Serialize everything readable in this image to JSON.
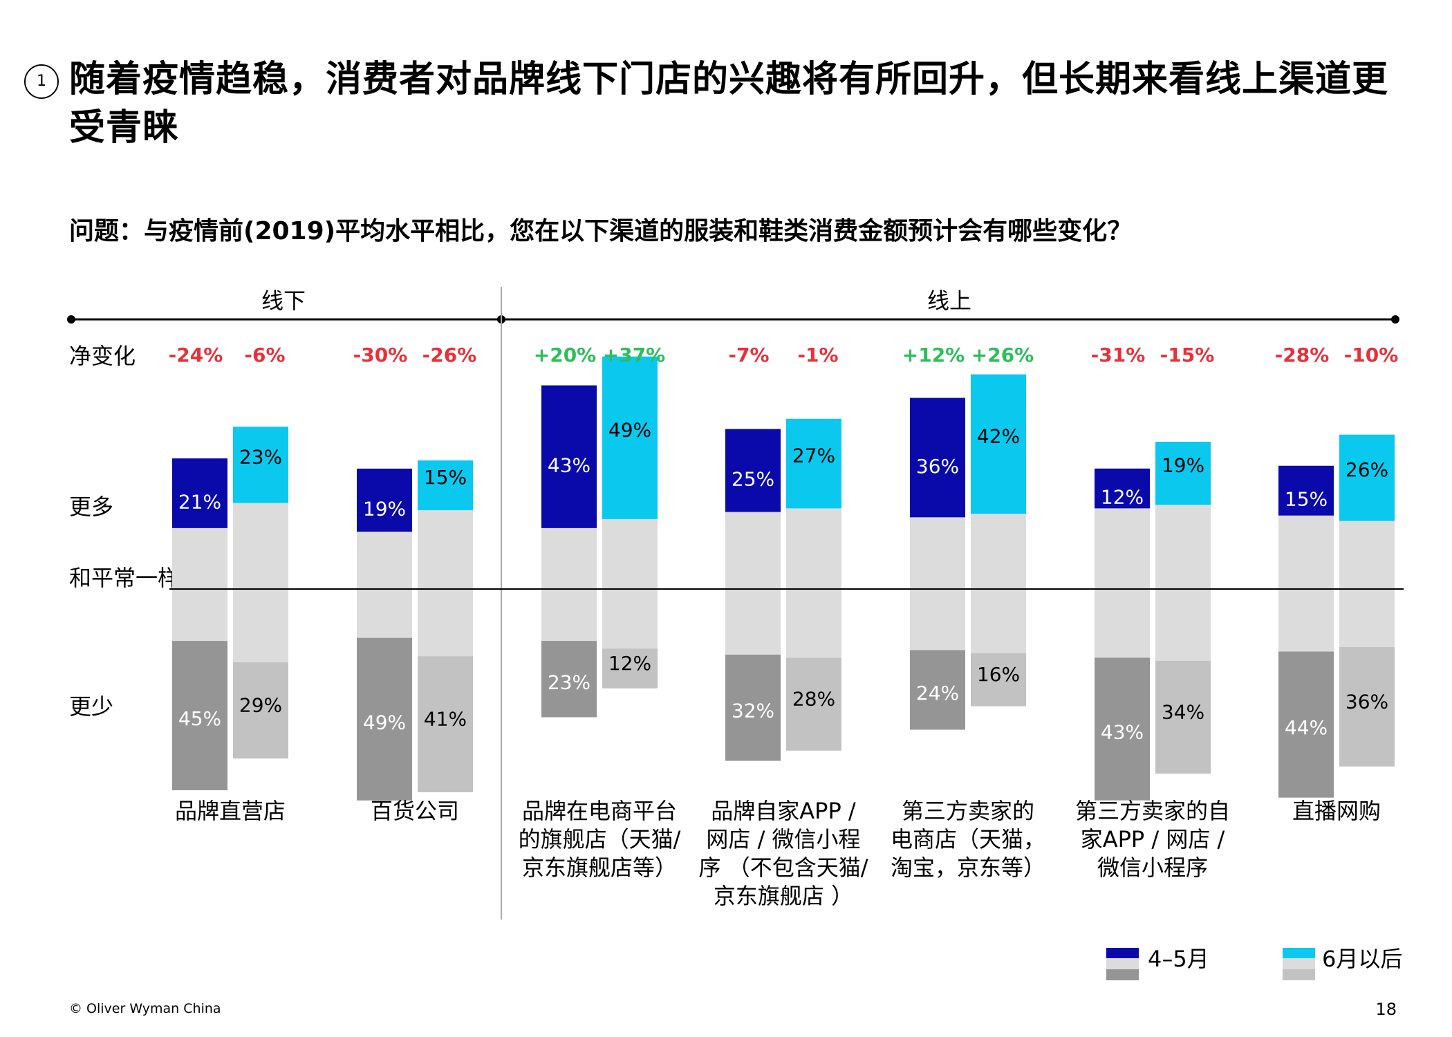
{
  "header": {
    "number": "1",
    "title": "随着疫情趋稳，消费者对品牌线下门店的兴趣将有所回升，但长期来看线上渠道更受青睐",
    "question": "问题：与疫情前(2019)平均水平相比，您在以下渠道的服装和鞋类消费金额预计会有哪些变化？"
  },
  "groups": {
    "offline": "线下",
    "online": "线上"
  },
  "row_labels": {
    "net": "净变化",
    "more": "更多",
    "same": "和平常一样",
    "less": "更少"
  },
  "legend": {
    "period1": "4–5月",
    "period2": "6月以后"
  },
  "colors": {
    "p1_more": "#0A0AAA",
    "p2_more": "#0BC8EE",
    "p1_same": "#DCDCDC",
    "p2_same": "#DCDCDC",
    "p1_less": "#959595",
    "p2_less": "#C2C2C2",
    "neg": "#E8303A",
    "pos": "#2DBE5A"
  },
  "chart_data": {
    "type": "bar",
    "title": "与疫情前(2019)平均水平相比，服装和鞋类消费金额预计变化",
    "series": [
      {
        "name": "4–5月",
        "more": [
          21,
          19,
          43,
          25,
          36,
          12,
          15
        ],
        "less": [
          45,
          49,
          23,
          32,
          24,
          43,
          44
        ],
        "net": [
          "-24%",
          "-30%",
          "+20%",
          "-7%",
          "+12%",
          "-31%",
          "-28%"
        ]
      },
      {
        "name": "6月以后",
        "more": [
          23,
          15,
          49,
          27,
          42,
          19,
          26
        ],
        "less": [
          29,
          41,
          12,
          28,
          16,
          34,
          36
        ],
        "net": [
          "-6%",
          "-26%",
          "+37%",
          "-1%",
          "+26%",
          "-15%",
          "-10%"
        ]
      }
    ],
    "categories": [
      "品牌直营店",
      "百货公司",
      "品牌在电商平台的旗舰店（天猫/京东旗舰店等）",
      "品牌自家APP / 网店 / 微信小程序 （不包含天猫/京东旗舰店 ）",
      "第三方卖家的电商店（天猫，淘宝，京东等）",
      "第三方卖家的自家APP / 网店 / 微信小程序",
      "直播网购"
    ],
    "category_lines": [
      [
        "品牌直营店"
      ],
      [
        "百货公司"
      ],
      [
        "品牌在电商平台",
        "的旗舰店（天猫/",
        "京东旗舰店等）"
      ],
      [
        "品牌自家APP /",
        "网店 / 微信小程",
        "序 （不包含天猫/",
        "京东旗舰店 ）"
      ],
      [
        "第三方卖家的",
        "电商店（天猫，",
        "淘宝，京东等）"
      ],
      [
        "第三方卖家的自",
        "家APP / 网店 /",
        "微信小程序"
      ],
      [
        "直播网购"
      ]
    ]
  },
  "footer": {
    "copyright": "© Oliver Wyman China",
    "page": "18"
  }
}
